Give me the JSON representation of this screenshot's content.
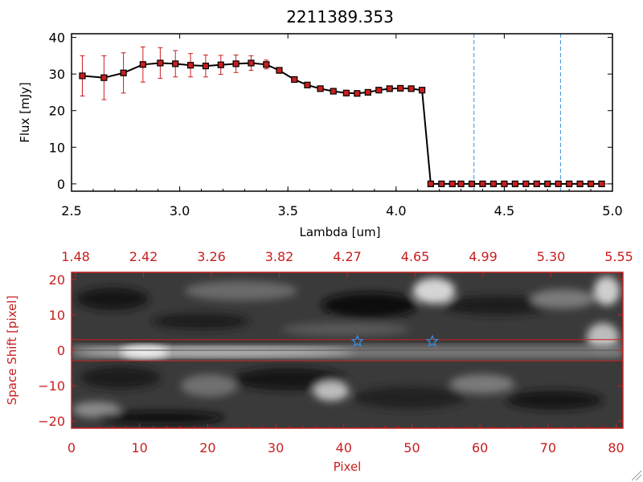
{
  "chart_data": [
    {
      "type": "line",
      "title": "2211389.353",
      "xlabel": "Lambda [um]",
      "ylabel": "Flux [mJy]",
      "xlim": [
        2.5,
        5.0
      ],
      "ylim": [
        -2,
        41
      ],
      "xticks": [
        2.5,
        3.0,
        3.5,
        4.0,
        4.5,
        5.0
      ],
      "xtick_labels": [
        "2.5",
        "3.0",
        "3.5",
        "4.0",
        "4.5",
        "5.0"
      ],
      "yticks": [
        0,
        10,
        20,
        30,
        40
      ],
      "ytick_labels": [
        "0",
        "10",
        "20",
        "30",
        "40"
      ],
      "vlines": [
        4.36,
        4.76
      ],
      "colors": {
        "line": "#000000",
        "marker": "#c81e1e",
        "error": "#c81e1e",
        "vline": "#3a8ee0",
        "zero": "#c81e1e"
      },
      "x": [
        2.55,
        2.65,
        2.74,
        2.83,
        2.91,
        2.98,
        3.05,
        3.12,
        3.19,
        3.26,
        3.33,
        3.4,
        3.46,
        3.53,
        3.59,
        3.65,
        3.71,
        3.77,
        3.82,
        3.87,
        3.92,
        3.97,
        4.02,
        4.07,
        4.12,
        4.16,
        4.21,
        4.26,
        4.3,
        4.35,
        4.4,
        4.45,
        4.5,
        4.55,
        4.6,
        4.65,
        4.7,
        4.75,
        4.8,
        4.85,
        4.9,
        4.95
      ],
      "y": [
        29.5,
        29.0,
        30.3,
        32.6,
        33.0,
        32.8,
        32.4,
        32.2,
        32.5,
        32.8,
        33.0,
        32.6,
        31.0,
        28.5,
        27.0,
        26.0,
        25.3,
        24.8,
        24.7,
        25.0,
        25.6,
        26.0,
        26.1,
        26.0,
        25.6,
        0,
        0,
        0,
        0,
        0,
        0,
        0,
        0,
        0,
        0,
        0,
        0,
        0,
        0,
        0,
        0,
        0
      ],
      "yerr": [
        5.5,
        6.0,
        5.5,
        4.8,
        4.2,
        3.6,
        3.2,
        3.0,
        2.6,
        2.4,
        2.0,
        1.2,
        0.8,
        0.6,
        0.5,
        0.4,
        0.4,
        0.3,
        0.3,
        0.3,
        0.3,
        0.3,
        0.3,
        0.3,
        0.3,
        0,
        0,
        0,
        0,
        0,
        0,
        0,
        0,
        0,
        0,
        0,
        0,
        0,
        0,
        0,
        0,
        0
      ]
    },
    {
      "type": "heatmap",
      "xlabel": "Pixel",
      "ylabel": "Space Shift [pixel]",
      "xlim": [
        0,
        81
      ],
      "ylim": [
        -22,
        22
      ],
      "xticks": [
        0,
        10,
        20,
        30,
        40,
        50,
        60,
        70,
        80
      ],
      "xtick_labels": [
        "0",
        "10",
        "20",
        "30",
        "40",
        "50",
        "60",
        "70",
        "80"
      ],
      "yticks": [
        -20,
        -10,
        0,
        10,
        20
      ],
      "ytick_labels": [
        "−20",
        "−10",
        "0",
        "10",
        "20"
      ],
      "top_axis_labels": [
        "1.48",
        "2.42",
        "3.26",
        "3.82",
        "4.27",
        "4.65",
        "4.99",
        "5.30",
        "5.55"
      ],
      "aperture_lines": [
        3,
        -3
      ],
      "center_line": 0,
      "stars": [
        {
          "x": 42,
          "y": 2.5
        },
        {
          "x": 53,
          "y": 2.5
        }
      ],
      "colors": {
        "axes": "#c81e1e",
        "aperture": "#c81e1e",
        "star": "#3a8ee0",
        "center": "#555555"
      }
    }
  ]
}
